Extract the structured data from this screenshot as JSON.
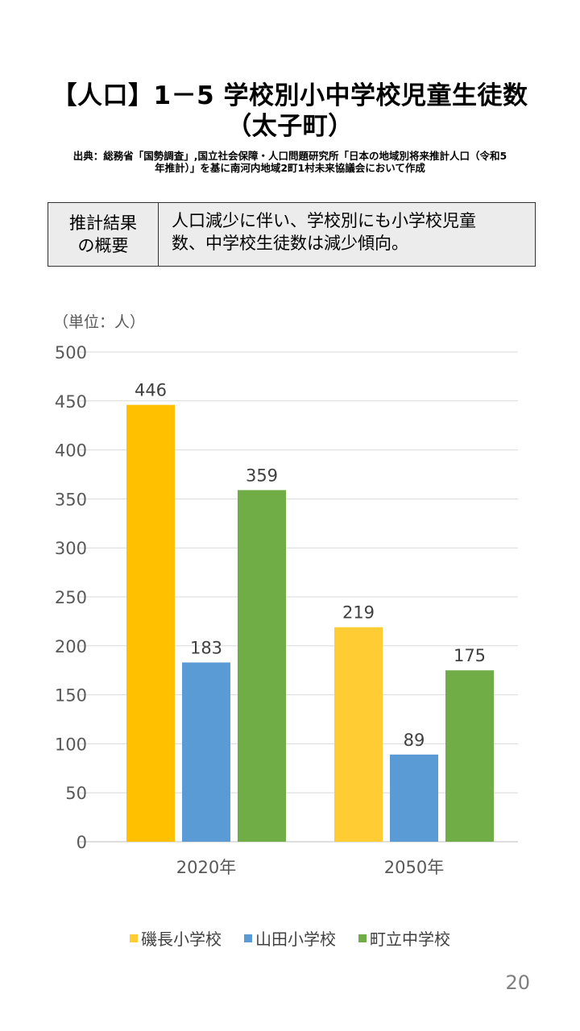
{
  "slide": {
    "title_line1": "【人口】1－5 学校別小中学校児童生徒数",
    "title_line2": "（太子町）",
    "source_line1": "出典：総務省「国勢調査」,国立社会保障・人口問題研究所「日本の地域別将来推計人口（令和5",
    "source_line2": "年推計）」を基に南河内地域2町1村未来協議会において作成",
    "summary_label_line1": "推計結果",
    "summary_label_line2": "の概要",
    "summary_text_line1": "人口減少に伴い、学校別にも小学校児童",
    "summary_text_line2": "数、中学校生徒数は減少傾向。",
    "unit_label": "（単位：人）",
    "page_number": "20"
  },
  "colors": {
    "series1_2020": "#FFC000",
    "series1_2050": "#FFCD33",
    "series2": "#5B9BD5",
    "series3": "#70AD47",
    "gridline": "#D9D9D9",
    "axis_text": "#595959"
  },
  "chart_data": {
    "type": "bar",
    "title": "【人口】1－5 学校別小中学校児童生徒数（太子町）",
    "xlabel": "",
    "ylabel": "（単位：人）",
    "ylim": [
      0,
      500
    ],
    "yticks": [
      0,
      50,
      100,
      150,
      200,
      250,
      300,
      350,
      400,
      450,
      500
    ],
    "grid": true,
    "legend_position": "bottom",
    "categories": [
      "2020年",
      "2050年"
    ],
    "series": [
      {
        "name": "磯長小学校",
        "values": [
          446,
          219
        ]
      },
      {
        "name": "山田小学校",
        "values": [
          183,
          89
        ]
      },
      {
        "name": "町立中学校",
        "values": [
          359,
          175
        ]
      }
    ]
  }
}
